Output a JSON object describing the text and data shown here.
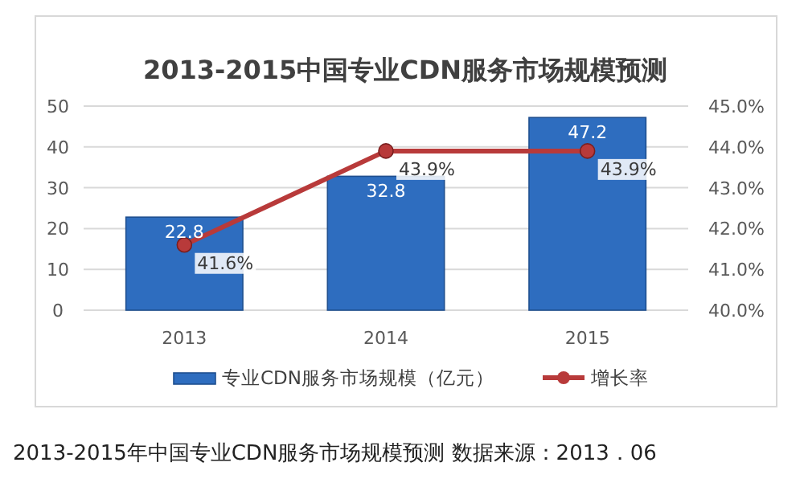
{
  "chart_data": {
    "type": "bar",
    "title": "2013-2015中国专业CDN服务市场规模预测",
    "categories": [
      "2013",
      "2014",
      "2015"
    ],
    "series": [
      {
        "name": "专业CDN服务市场规模（亿元）",
        "color": "#2e6dbf",
        "values": [
          22.8,
          32.8,
          47.2
        ],
        "value_labels": [
          "22.8",
          "32.8",
          "47.2"
        ]
      },
      {
        "name": "增长率",
        "type": "line",
        "axis": "y2",
        "color": "#b83a3a",
        "values": [
          41.6,
          43.9,
          43.9
        ],
        "value_labels": [
          "41.6%",
          "43.9%",
          "43.9%"
        ]
      }
    ],
    "ylim": [
      0,
      50
    ],
    "yticks": [
      0,
      10,
      20,
      30,
      40,
      50
    ],
    "y2lim": [
      40,
      45
    ],
    "y2ticks": [
      {
        "value": 40,
        "label": "40.0%"
      },
      {
        "value": 41,
        "label": "41.0%"
      },
      {
        "value": 42,
        "label": "42.0%"
      },
      {
        "value": 43,
        "label": "43.0%"
      },
      {
        "value": 44,
        "label": "44.0%"
      },
      {
        "value": 45,
        "label": "45.0%"
      }
    ],
    "grid": "y",
    "legend": "bottom",
    "marker": "circle",
    "annotations": [
      "2013-2015年中国专业CDN服务市场规模预测 数据来源：2013．06"
    ]
  }
}
